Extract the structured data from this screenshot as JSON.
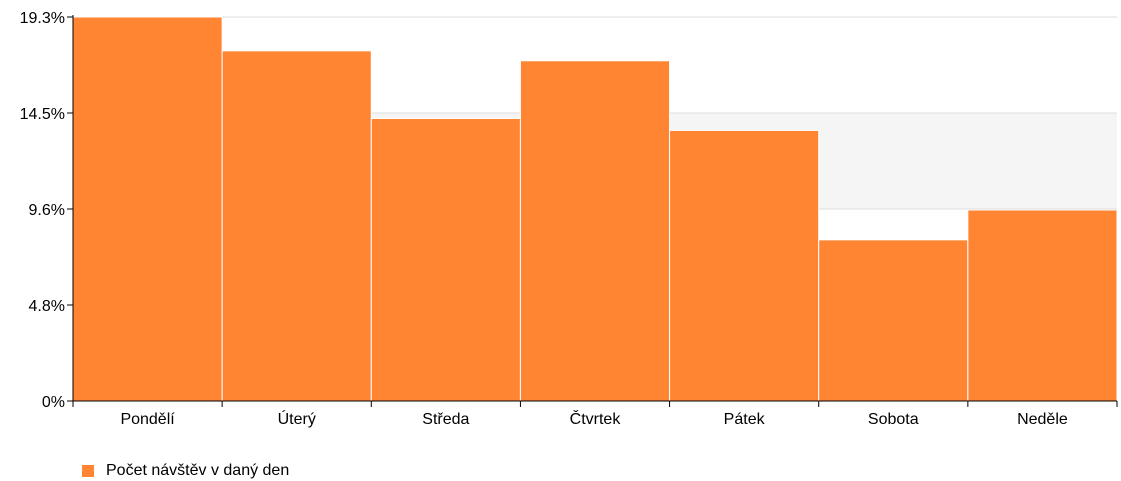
{
  "chart_data": {
    "type": "bar",
    "categories": [
      "Pondělí",
      "Úterý",
      "Středa",
      "Čtvrtek",
      "Pátek",
      "Sobota",
      "Neděle"
    ],
    "series": [
      {
        "name": "Počet návštěv v daný den",
        "values": [
          19.3,
          17.6,
          14.2,
          17.1,
          13.6,
          8.1,
          9.6
        ],
        "color": "#ff8533"
      }
    ],
    "y_ticks": [
      "0%",
      "4.8%",
      "9.6%",
      "14.5%",
      "19.3%"
    ],
    "ylim": [
      0,
      19.3
    ],
    "grid": true,
    "legend": "bottom-left"
  }
}
